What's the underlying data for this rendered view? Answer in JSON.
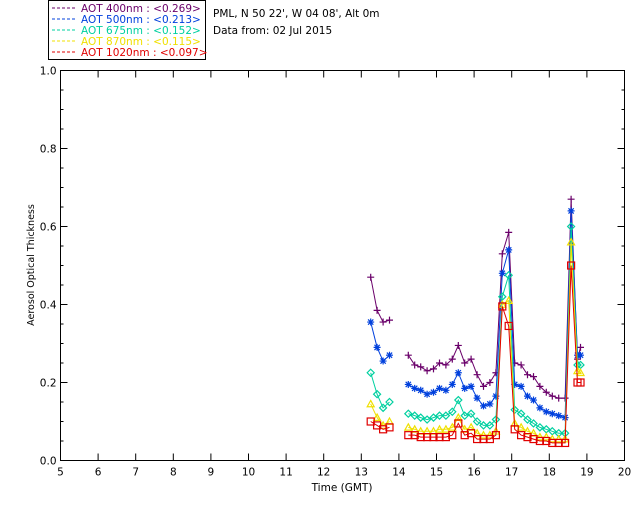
{
  "header": {
    "site_line": "PML, N 50 22', W 04 08', Alt 0m",
    "date_line": "Data from: 02 Jul 2015"
  },
  "chart_data": {
    "type": "line",
    "title": "",
    "xlabel": "Time (GMT)",
    "ylabel": "Aerosol Optical Thickness",
    "xlim": [
      5,
      20
    ],
    "ylim": [
      0.0,
      1.0
    ],
    "xticks": [
      "5",
      "6",
      "7",
      "8",
      "9",
      "10",
      "11",
      "12",
      "13",
      "14",
      "15",
      "16",
      "17",
      "18",
      "19",
      "20"
    ],
    "yticks": [
      "0.0",
      "0.2",
      "0.4",
      "0.6",
      "0.8",
      "1.0"
    ],
    "grid": false,
    "legend_position": "top-left, above plot",
    "segments": [
      [
        13.25,
        13.42,
        13.58,
        13.75
      ],
      [
        14.25,
        14.42,
        14.58,
        14.75,
        14.92,
        15.08,
        15.25,
        15.42,
        15.58,
        15.75,
        15.92,
        16.08,
        16.25,
        16.42,
        16.58,
        16.75,
        16.92,
        17.08,
        17.25,
        17.42,
        17.58,
        17.75,
        17.92,
        18.08,
        18.25,
        18.42,
        18.58,
        18.75,
        18.83
      ]
    ],
    "series": [
      {
        "name": "AOT  400nm : <0.269>",
        "color": "#6a006a",
        "marker": "plus",
        "values": [
          [
            0.47,
            0.385,
            0.355,
            0.36
          ],
          [
            0.27,
            0.245,
            0.24,
            0.23,
            0.235,
            0.25,
            0.245,
            0.26,
            0.295,
            0.25,
            0.26,
            0.22,
            0.19,
            0.2,
            0.225,
            0.53,
            0.585,
            0.25,
            0.245,
            0.22,
            0.215,
            0.19,
            0.175,
            0.165,
            0.16,
            0.16,
            0.67,
            0.26,
            0.29
          ]
        ]
      },
      {
        "name": "AOT  500nm : <0.213>",
        "color": "#0040dd",
        "marker": "asterisk",
        "values": [
          [
            0.355,
            0.29,
            0.255,
            0.27
          ],
          [
            0.195,
            0.185,
            0.18,
            0.17,
            0.175,
            0.185,
            0.18,
            0.195,
            0.225,
            0.185,
            0.19,
            0.16,
            0.14,
            0.145,
            0.165,
            0.48,
            0.54,
            0.195,
            0.19,
            0.165,
            0.155,
            0.135,
            0.125,
            0.12,
            0.115,
            0.11,
            0.64,
            0.27,
            0.27
          ]
        ]
      },
      {
        "name": "AOT  675nm : <0.152>",
        "color": "#00d0a0",
        "marker": "diamond",
        "values": [
          [
            0.225,
            0.17,
            0.135,
            0.15
          ],
          [
            0.12,
            0.115,
            0.11,
            0.105,
            0.11,
            0.115,
            0.115,
            0.125,
            0.155,
            0.115,
            0.12,
            0.1,
            0.09,
            0.09,
            0.105,
            0.42,
            0.475,
            0.13,
            0.12,
            0.105,
            0.095,
            0.085,
            0.08,
            0.075,
            0.07,
            0.07,
            0.6,
            0.245,
            0.245
          ]
        ]
      },
      {
        "name": "AOT  870nm : <0.115>",
        "color": "#f0e000",
        "marker": "triangle",
        "values": [
          [
            0.145,
            0.11,
            0.09,
            0.1
          ],
          [
            0.085,
            0.08,
            0.075,
            0.075,
            0.075,
            0.08,
            0.08,
            0.085,
            0.11,
            0.08,
            0.085,
            0.07,
            0.065,
            0.065,
            0.075,
            0.4,
            0.41,
            0.095,
            0.085,
            0.075,
            0.07,
            0.06,
            0.06,
            0.055,
            0.055,
            0.055,
            0.56,
            0.23,
            0.225
          ]
        ]
      },
      {
        "name": "AOT 1020nm : <0.097>",
        "color": "#e00000",
        "marker": "square",
        "values": [
          [
            0.1,
            0.09,
            0.08,
            0.085
          ],
          [
            0.065,
            0.065,
            0.06,
            0.06,
            0.06,
            0.06,
            0.06,
            0.065,
            0.095,
            0.065,
            0.07,
            0.055,
            0.055,
            0.055,
            0.065,
            0.395,
            0.345,
            0.08,
            0.065,
            0.06,
            0.055,
            0.05,
            0.05,
            0.045,
            0.045,
            0.045,
            0.5,
            0.2,
            0.2
          ]
        ]
      }
    ]
  }
}
